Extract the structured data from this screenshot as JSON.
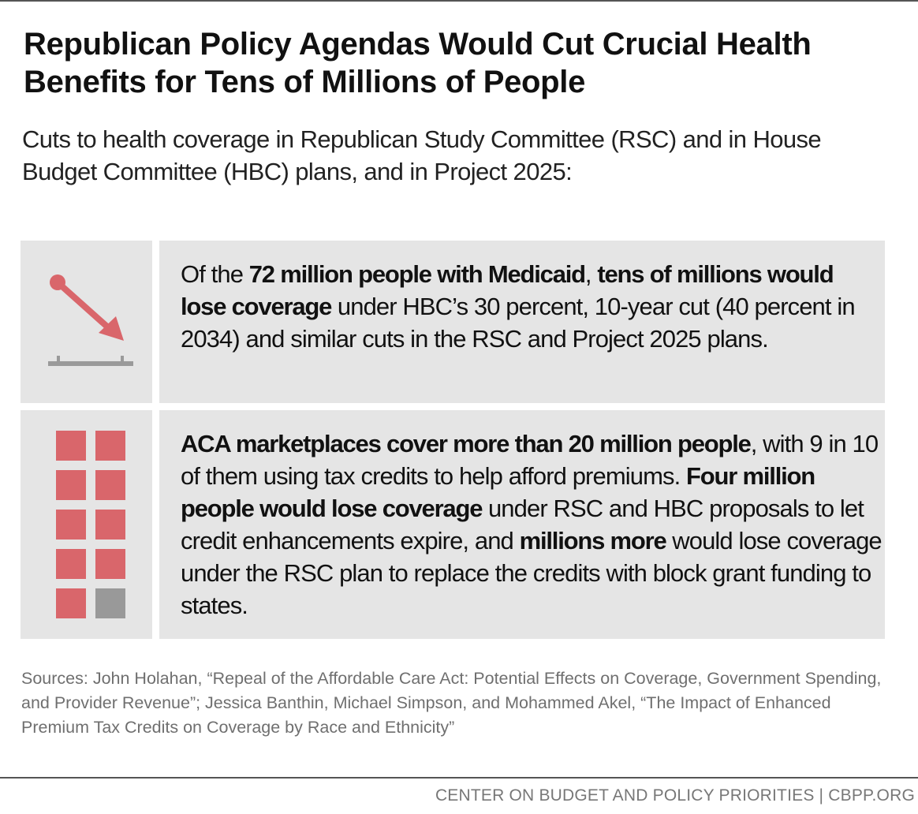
{
  "header": {
    "title": "Republican Policy Agendas Would Cut Crucial Health Benefits for Tens of Millions of People",
    "subtitle": "Cuts to health coverage in Republican Study Committee (RSC) and in House Budget Committee (HBC) plans, and in Project 2025:"
  },
  "rows": [
    {
      "segments": [
        {
          "text": "Of the ",
          "bold": false
        },
        {
          "text": "72 million people with Medicaid",
          "bold": true
        },
        {
          "text": ", ",
          "bold": false
        },
        {
          "text": "tens of millions would lose coverage",
          "bold": true
        },
        {
          "text": " under HBC’s 30 percent, 10-year cut (40 percent in 2034) and similar cuts in the RSC and Project 2025 plans.",
          "bold": false
        }
      ]
    },
    {
      "segments": [
        {
          "text": "ACA marketplaces cover more than 20 million people",
          "bold": true
        },
        {
          "text": ", with 9 in 10 of them using tax credits to help afford premiums. ",
          "bold": false
        },
        {
          "text": "Four million people would lose coverage",
          "bold": true
        },
        {
          "text": " under RSC and HBC proposals to let credit enhancements expire, and ",
          "bold": false
        },
        {
          "text": "millions more",
          "bold": true
        },
        {
          "text": " would lose coverage under the RSC plan to replace the credits with block grant funding to states.",
          "bold": false
        }
      ]
    }
  ],
  "sources": "Sources: John Holahan, “Repeal of the Affordable Care Act: Potential Effects on Coverage, Government Spending, and Provider Revenue”; Jessica Banthin, Michael Simpson, and Mohammed Akel, “The Impact of Enhanced Premium Tax Credits on Coverage by Race and Ethnicity”",
  "footer": "CENTER ON BUDGET AND POLICY PRIORITIES | CBPP.ORG"
}
